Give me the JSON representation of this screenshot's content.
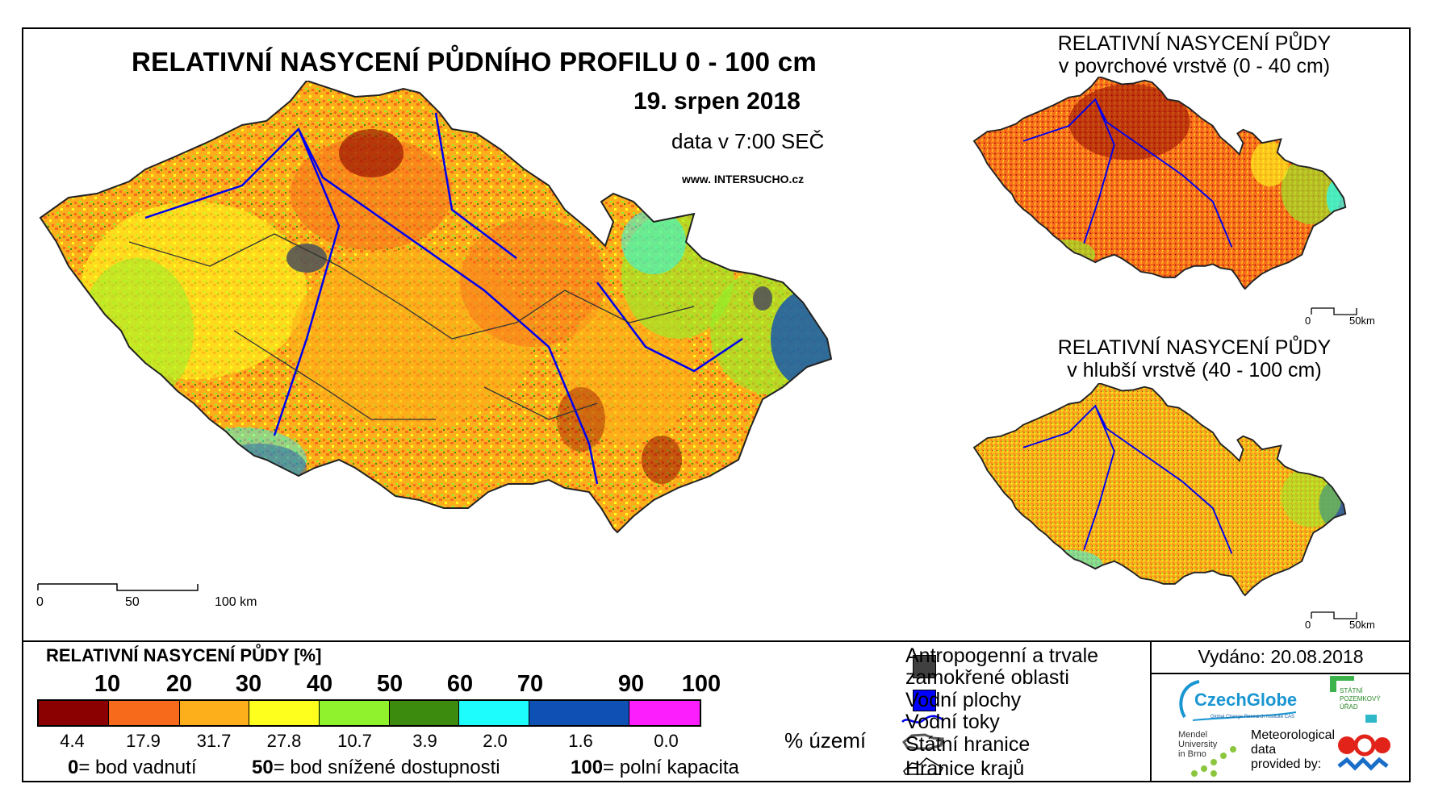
{
  "main": {
    "title": "RELATIVNÍ NASYCENÍ PŮDNÍHO PROFILU 0 - 100 cm",
    "date": "19. srpen 2018",
    "time": "data v 7:00 SEČ",
    "url_prefix": "www. INTER",
    "url_highlight": "SUCHO",
    "url_suffix": ".cz",
    "scale": {
      "labels": [
        "0",
        "50",
        "100 km"
      ]
    }
  },
  "insets": {
    "top": {
      "title_line1": "RELATIVNÍ NASYCENÍ PŮDY",
      "title_line2": "v povrchové vrstvě (0 - 40 cm)",
      "scale_left": "0",
      "scale_right": "50km"
    },
    "bottom": {
      "title_line1": "RELATIVNÍ NASYCENÍ PŮDY",
      "title_line2": "v hlubší vrstvě (40 - 100 cm)",
      "scale_left": "0",
      "scale_right": "50km"
    }
  },
  "legend": {
    "title": "RELATIVNÍ NASYCENÍ PŮDY [%]",
    "ticks": [
      "10",
      "20",
      "30",
      "40",
      "50",
      "60",
      "70",
      "90",
      "100"
    ],
    "classes": [
      {
        "color": "#8b0000",
        "pct": "4.4"
      },
      {
        "color": "#f76a1c",
        "pct": "17.9"
      },
      {
        "color": "#fdaf1b",
        "pct": "31.7"
      },
      {
        "color": "#ffff1e",
        "pct": "27.8"
      },
      {
        "color": "#8ff22c",
        "pct": "10.7"
      },
      {
        "color": "#3c8b0f",
        "pct": "3.9"
      },
      {
        "color": "#1efdfd",
        "pct": "2.0"
      },
      {
        "color": "#0f50b4",
        "pct": "1.6"
      },
      {
        "color": "#fd1efd",
        "pct": "0.0"
      }
    ],
    "unit": "% území",
    "notes": [
      {
        "value": "0",
        "text": "= bod vadnutí"
      },
      {
        "value": "50",
        "text": "= bod snížené dostupnosti"
      },
      {
        "value": "100",
        "text": "= polní kapacita"
      }
    ]
  },
  "key": {
    "items": [
      {
        "label": "Antropogenní a trvale zamokřené oblasti",
        "line1": "Antropogenní a trvale",
        "line2": "zamokřené oblasti",
        "icon": "gray-square",
        "color": "#404040"
      },
      {
        "label": "Vodní plochy",
        "icon": "blue-square",
        "color": "#0000ff"
      },
      {
        "label": "Vodní toky",
        "icon": "river-line",
        "color": "#0000ff"
      },
      {
        "label": "Státní hranice",
        "icon": "state-border"
      },
      {
        "label": "Hranice krajů",
        "icon": "region-border"
      }
    ]
  },
  "issued": "Vydáno: 20.08.2018",
  "logos": {
    "czechglobe": "CzechGlobe",
    "czechglobe_sub": "Global Change Research Institute CAS",
    "spu": [
      "STÁTNÍ",
      "POZEMKOVÝ",
      "ÚŘAD"
    ],
    "mendel": [
      "Mendel",
      "University",
      "in Brno"
    ],
    "meteo": [
      "Meteorological",
      "data",
      "provided by:"
    ]
  }
}
